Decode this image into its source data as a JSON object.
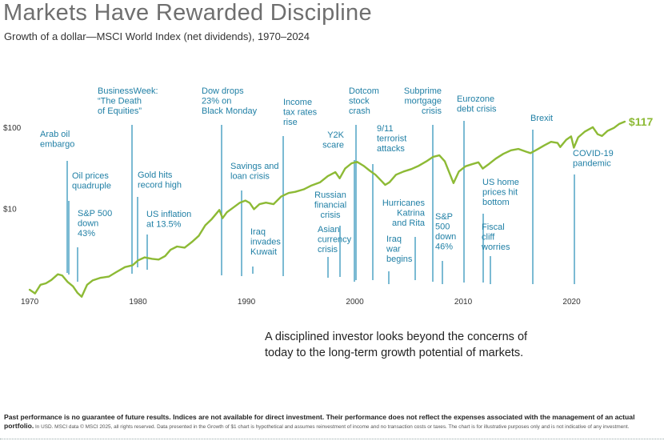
{
  "title": "Markets Have Rewarded Discipline",
  "subtitle": "Growth of a dollar—MSCI World Index (net dividends), 1970–2024",
  "colors": {
    "line": "#8dba35",
    "event": "#1f7fa5",
    "eventLine": "#5aa9c8"
  },
  "chart_data": {
    "type": "line",
    "title": "Markets Have Rewarded Discipline",
    "subtitle": "Growth of a dollar—MSCI World Index (net dividends), 1970–2024",
    "y_scale": "log",
    "xlabel": "",
    "ylabel": "",
    "x_ticks": [
      "1970",
      "1980",
      "1990",
      "2000",
      "2010",
      "2020"
    ],
    "y_ticks": [
      "$10",
      "$100"
    ],
    "ylim": [
      1,
      180
    ],
    "xlim": [
      1969.7,
      2025.2
    ],
    "end_label": "$117",
    "series": [
      {
        "points": [
          [
            1970.0,
            1.0
          ],
          [
            1970.5,
            0.9
          ],
          [
            1971.0,
            1.15
          ],
          [
            1971.5,
            1.2
          ],
          [
            1972.0,
            1.32
          ],
          [
            1972.6,
            1.55
          ],
          [
            1973.0,
            1.5
          ],
          [
            1973.5,
            1.25
          ],
          [
            1974.0,
            1.1
          ],
          [
            1974.4,
            0.92
          ],
          [
            1974.8,
            0.82
          ],
          [
            1975.3,
            1.15
          ],
          [
            1975.8,
            1.3
          ],
          [
            1976.5,
            1.4
          ],
          [
            1977.3,
            1.45
          ],
          [
            1978.0,
            1.65
          ],
          [
            1978.8,
            1.9
          ],
          [
            1979.5,
            2.0
          ],
          [
            1980.0,
            2.3
          ],
          [
            1980.6,
            2.5
          ],
          [
            1981.3,
            2.4
          ],
          [
            1981.9,
            2.35
          ],
          [
            1982.5,
            2.6
          ],
          [
            1983.0,
            3.1
          ],
          [
            1983.6,
            3.4
          ],
          [
            1984.3,
            3.3
          ],
          [
            1985.0,
            3.9
          ],
          [
            1985.6,
            4.6
          ],
          [
            1986.2,
            6.2
          ],
          [
            1986.8,
            7.4
          ],
          [
            1987.5,
            9.6
          ],
          [
            1987.8,
            7.6
          ],
          [
            1988.2,
            9.0
          ],
          [
            1988.8,
            10.3
          ],
          [
            1989.4,
            11.8
          ],
          [
            1989.9,
            12.5
          ],
          [
            1990.3,
            11.7
          ],
          [
            1990.7,
            9.8
          ],
          [
            1991.2,
            11.3
          ],
          [
            1991.8,
            11.8
          ],
          [
            1992.5,
            11.3
          ],
          [
            1993.2,
            14.0
          ],
          [
            1993.9,
            15.5
          ],
          [
            1994.5,
            16.0
          ],
          [
            1995.3,
            17.2
          ],
          [
            1996.0,
            19.2
          ],
          [
            1996.8,
            21.0
          ],
          [
            1997.5,
            25.0
          ],
          [
            1998.2,
            28.0
          ],
          [
            1998.6,
            23.5
          ],
          [
            1999.1,
            31.0
          ],
          [
            1999.7,
            36.0
          ],
          [
            2000.2,
            37.5
          ],
          [
            2000.8,
            33.5
          ],
          [
            2001.4,
            29.0
          ],
          [
            2001.9,
            26.0
          ],
          [
            2002.5,
            21.5
          ],
          [
            2002.8,
            19.5
          ],
          [
            2003.2,
            21.0
          ],
          [
            2003.8,
            26.0
          ],
          [
            2004.5,
            28.5
          ],
          [
            2005.2,
            30.5
          ],
          [
            2005.9,
            33.5
          ],
          [
            2006.6,
            38.0
          ],
          [
            2007.2,
            43.0
          ],
          [
            2007.8,
            45.0
          ],
          [
            2008.3,
            38.0
          ],
          [
            2008.7,
            28.0
          ],
          [
            2009.1,
            20.5
          ],
          [
            2009.6,
            28.5
          ],
          [
            2010.2,
            33.0
          ],
          [
            2010.8,
            35.0
          ],
          [
            2011.4,
            37.0
          ],
          [
            2011.8,
            31.0
          ],
          [
            2012.4,
            35.5
          ],
          [
            2013.0,
            41.0
          ],
          [
            2013.7,
            47.0
          ],
          [
            2014.4,
            52.0
          ],
          [
            2015.1,
            54.0
          ],
          [
            2015.8,
            50.0
          ],
          [
            2016.2,
            48.0
          ],
          [
            2016.8,
            53.0
          ],
          [
            2017.5,
            60.0
          ],
          [
            2018.1,
            66.0
          ],
          [
            2018.7,
            64.0
          ],
          [
            2018.95,
            57.0
          ],
          [
            2019.5,
            70.0
          ],
          [
            2019.95,
            77.0
          ],
          [
            2020.2,
            56.0
          ],
          [
            2020.6,
            75.0
          ],
          [
            2021.2,
            88.0
          ],
          [
            2021.95,
            100.0
          ],
          [
            2022.4,
            82.0
          ],
          [
            2022.8,
            78.0
          ],
          [
            2023.3,
            90.0
          ],
          [
            2023.9,
            98.0
          ],
          [
            2024.4,
            110.0
          ],
          [
            2024.9,
            117.0
          ]
        ]
      }
    ],
    "events": [
      {
        "lines": [
          "Arab oil",
          "embargo"
        ],
        "year": 1973.8
      },
      {
        "lines": [
          "Oil prices",
          "quadruple"
        ],
        "year": 1974.1
      },
      {
        "lines": [
          "S&P 500",
          "down",
          "43%"
        ],
        "year": 1974.5
      },
      {
        "lines": [
          "BusinessWeek:",
          "“The Death",
          "of Equities”"
        ],
        "year": 1979.6
      },
      {
        "lines": [
          "Gold hits",
          "record high"
        ],
        "year": 1980.1
      },
      {
        "lines": [
          "US inflation",
          "at 13.5%"
        ],
        "year": 1980.9
      },
      {
        "lines": [
          "Dow drops",
          "23% on",
          "Black Monday"
        ],
        "year": 1987.8
      },
      {
        "lines": [
          "Savings and",
          "loan crisis"
        ],
        "year": 1989.7
      },
      {
        "lines": [
          "Iraq",
          "invades",
          "Kuwait"
        ],
        "year": 1990.7
      },
      {
        "lines": [
          "Income",
          "tax rates",
          "rise"
        ],
        "year": 1993.7
      },
      {
        "lines": [
          "Asian",
          "currency",
          "crisis"
        ],
        "year": 1997.6
      },
      {
        "lines": [
          "Russian",
          "financial",
          "crisis"
        ],
        "year": 1998.6
      },
      {
        "lines": [
          "Y2K",
          "scare"
        ],
        "year": 1999.9
      },
      {
        "lines": [
          "Dotcom",
          "stock",
          "crash"
        ],
        "year": 2000.2
      },
      {
        "lines": [
          "9/11",
          "terrorist",
          "attacks"
        ],
        "year": 2001.7
      },
      {
        "lines": [
          "Iraq",
          "war",
          "begins"
        ],
        "year": 2003.2
      },
      {
        "lines": [
          "Hurricanes",
          "Katrina",
          "and Rita"
        ],
        "year": 2005.7
      },
      {
        "lines": [
          "Subprime",
          "mortgage",
          "crisis"
        ],
        "year": 2007.2
      },
      {
        "lines": [
          "S&P",
          "500",
          "down",
          "46%"
        ],
        "year": 2008.8
      },
      {
        "lines": [
          "Eurozone",
          "debt crisis"
        ],
        "year": 2010.2
      },
      {
        "lines": [
          "US home",
          "prices hit",
          "bottom"
        ],
        "year": 2012.1
      },
      {
        "lines": [
          "Fiscal",
          "cliff",
          "worries"
        ],
        "year": 2012.9
      },
      {
        "lines": [
          "Brexit"
        ],
        "year": 2016.5
      },
      {
        "lines": [
          "COVID-19",
          "pandemic"
        ],
        "year": 2020.2
      }
    ]
  },
  "tagline": {
    "line1": "A disciplined investor looks beyond the concerns of",
    "line2": "today to the long-term growth potential of markets."
  },
  "disclaimer": {
    "bold": "Past performance is no guarantee of future results. Indices are not available for direct investment. Their performance does not reflect the expenses associated with the management of an actual portfolio.",
    "fine": " In USD. MSCI data © MSCI 2025, all rights reserved. Data presented in the Growth of $1 chart is hypothetical and assumes reinvestment of income and no transaction costs or taxes. The chart is for illustrative purposes only and is not indicative of any investment."
  }
}
